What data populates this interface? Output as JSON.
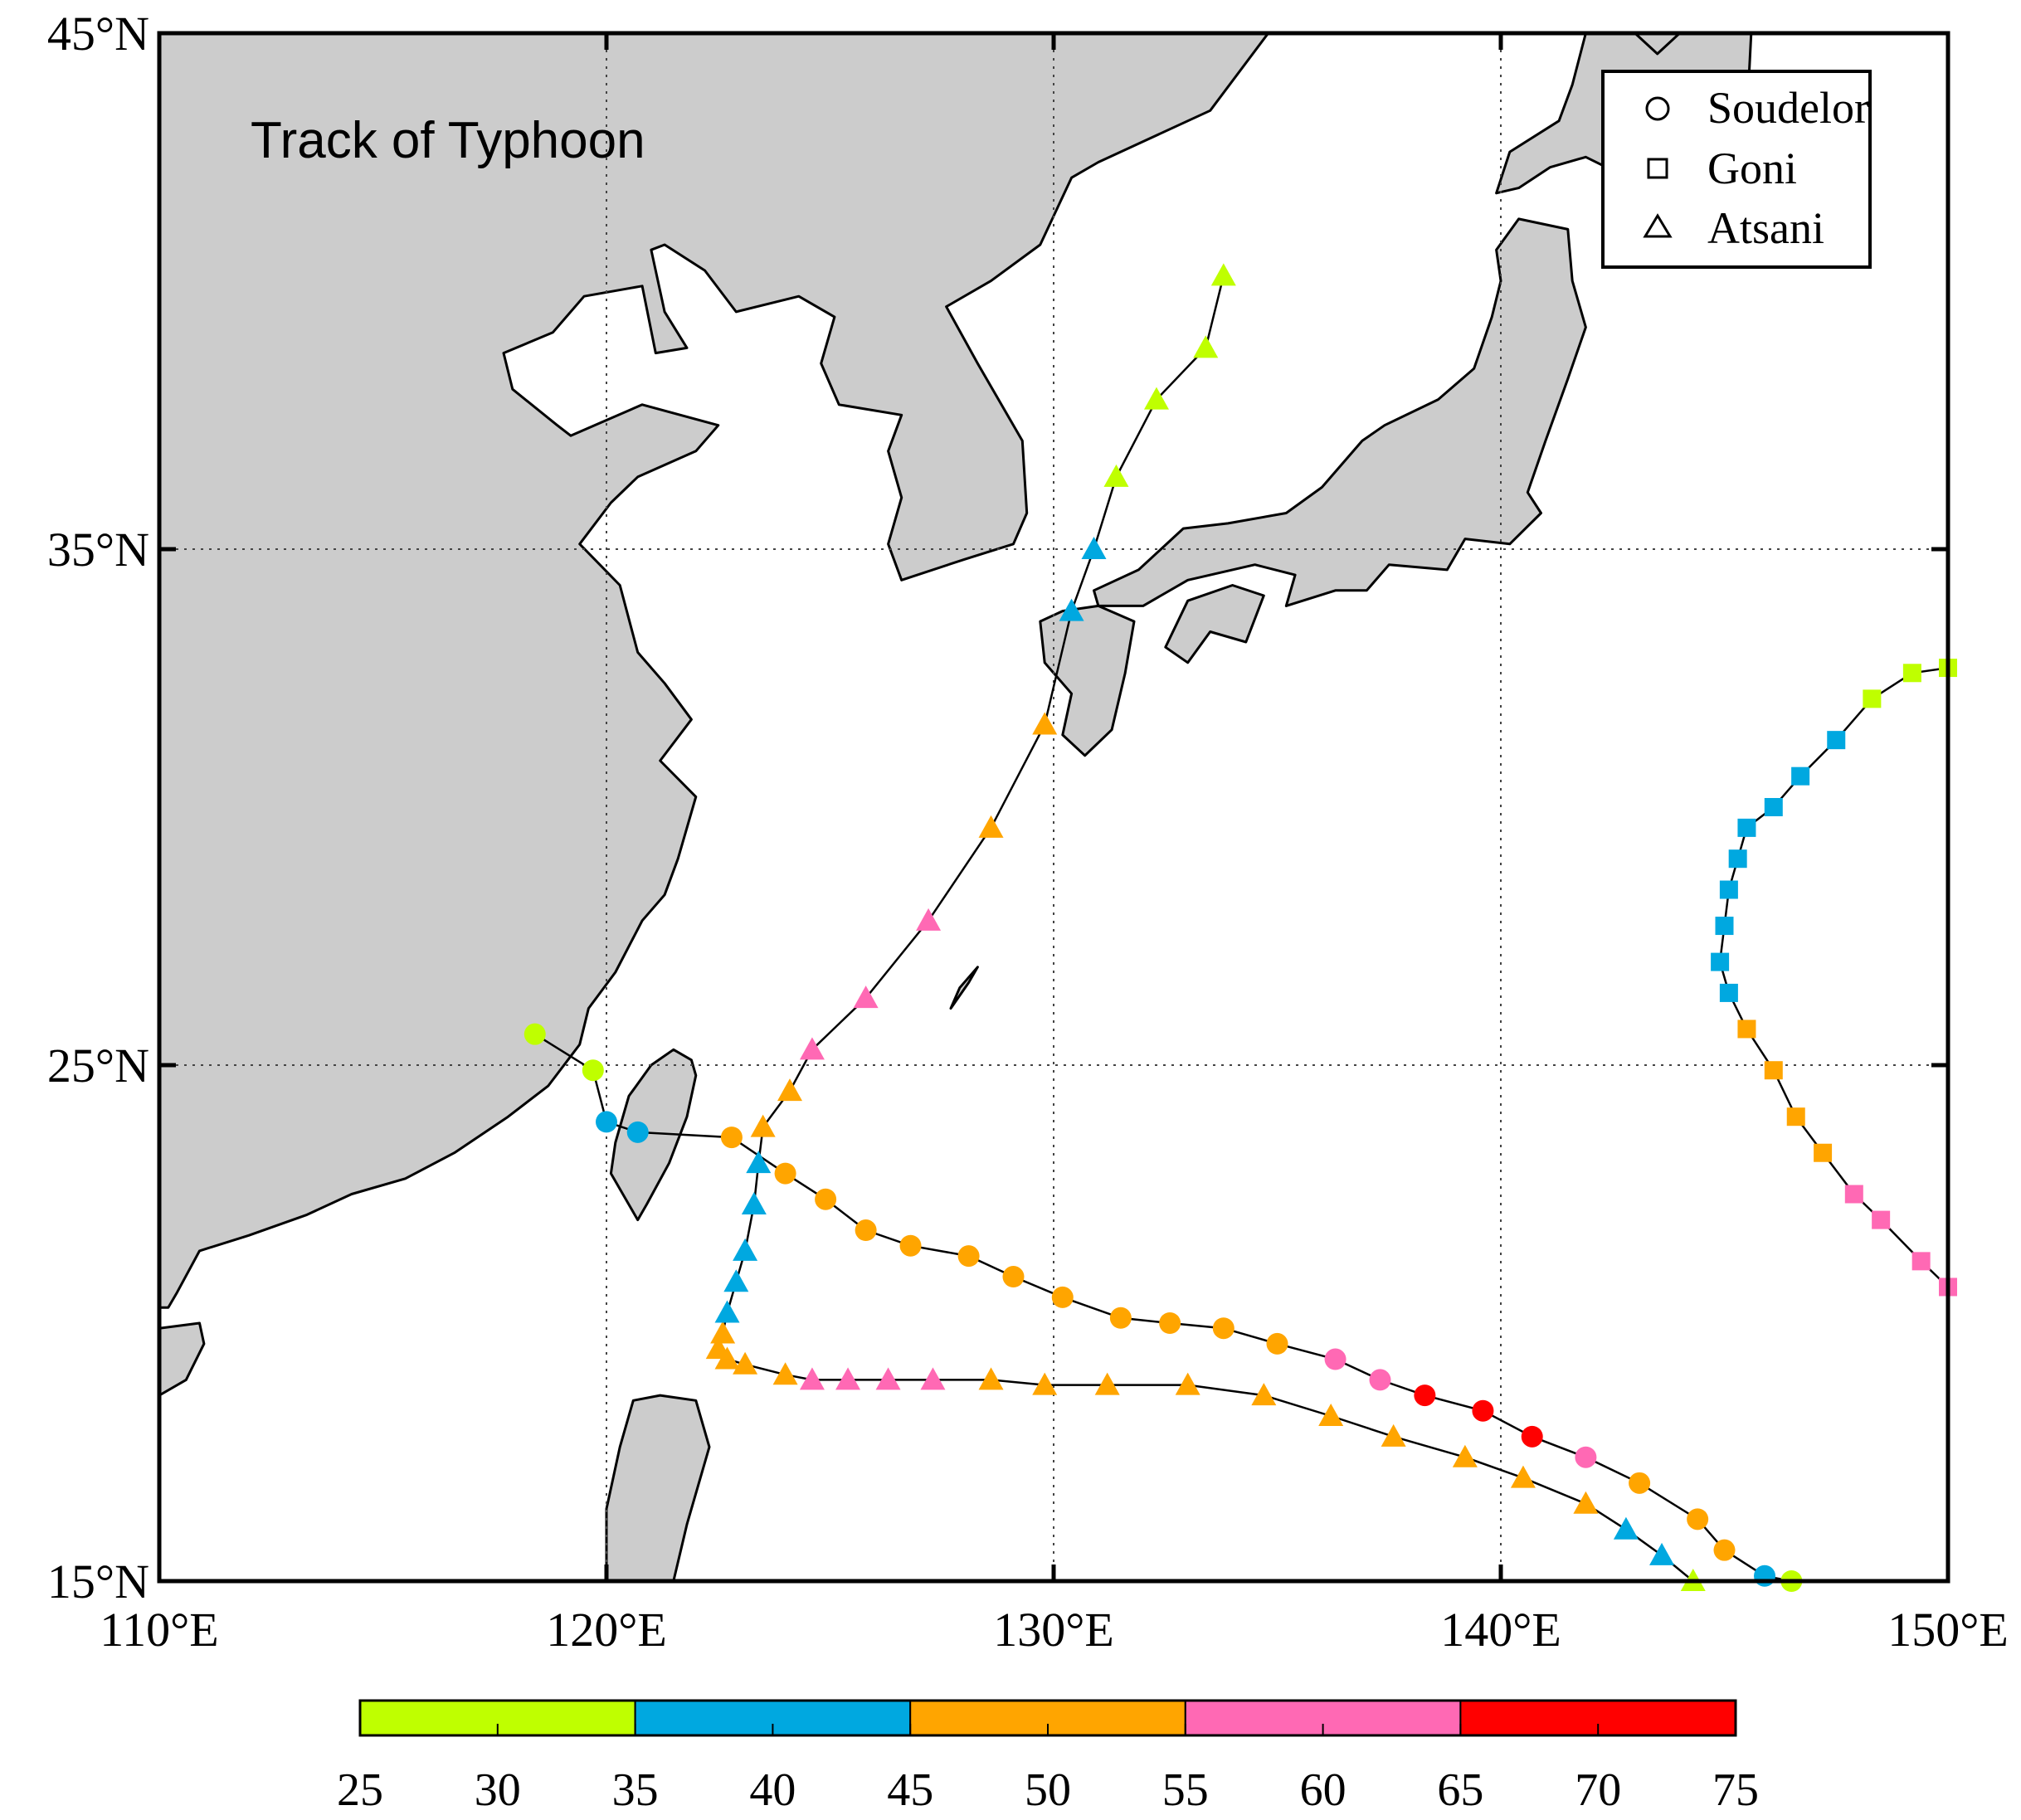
{
  "map": {
    "title": "Track of Typhoon",
    "lon_range": [
      110,
      150
    ],
    "lat_range": [
      15,
      45
    ],
    "lon_ticks": [
      {
        "value": 110,
        "label": "110°E"
      },
      {
        "value": 120,
        "label": "120°E"
      },
      {
        "value": 130,
        "label": "130°E"
      },
      {
        "value": 140,
        "label": "140°E"
      },
      {
        "value": 150,
        "label": "150°E"
      }
    ],
    "lat_ticks": [
      {
        "value": 15,
        "label": "15°N"
      },
      {
        "value": 25,
        "label": "25°N"
      },
      {
        "value": 35,
        "label": "35°N"
      },
      {
        "value": 45,
        "label": "45°N"
      }
    ],
    "grid": "dotted",
    "land_color": "#cccccc",
    "sea_color": "#ffffff"
  },
  "legend": {
    "placement": "top-right",
    "items": [
      {
        "marker": "circle",
        "label": "Soudelor"
      },
      {
        "marker": "square",
        "label": "Goni"
      },
      {
        "marker": "triangle",
        "label": "Atsani"
      }
    ]
  },
  "colorbar": {
    "ticks": [
      "25",
      "30",
      "35",
      "40",
      "45",
      "50",
      "55",
      "60",
      "65",
      "70",
      "75"
    ],
    "bins": [
      {
        "from": 25,
        "to": 35,
        "color": "#bfff00"
      },
      {
        "from": 35,
        "to": 45,
        "color": "#00a8e0"
      },
      {
        "from": 45,
        "to": 55,
        "color": "#ffa500"
      },
      {
        "from": 55,
        "to": 65,
        "color": "#ff69b4"
      },
      {
        "from": 65,
        "to": 75,
        "color": "#ff0000"
      }
    ]
  },
  "chart_data": {
    "type": "scatter",
    "title": "Track of Typhoon",
    "xlim": [
      110,
      150
    ],
    "ylim": [
      15,
      45
    ],
    "series": [
      {
        "name": "Soudelor",
        "marker": "circle",
        "points": [
          [
            146.5,
            15.0,
            30
          ],
          [
            145.9,
            15.1,
            40
          ],
          [
            145.0,
            15.6,
            50
          ],
          [
            144.4,
            16.2,
            50
          ],
          [
            143.1,
            16.9,
            50
          ],
          [
            141.9,
            17.4,
            60
          ],
          [
            140.7,
            17.8,
            70
          ],
          [
            139.6,
            18.3,
            70
          ],
          [
            138.3,
            18.6,
            70
          ],
          [
            137.3,
            18.9,
            60
          ],
          [
            136.3,
            19.3,
            60
          ],
          [
            135.0,
            19.6,
            50
          ],
          [
            133.8,
            19.9,
            50
          ],
          [
            132.6,
            20.0,
            50
          ],
          [
            131.5,
            20.1,
            50
          ],
          [
            130.2,
            20.5,
            50
          ],
          [
            129.1,
            20.9,
            50
          ],
          [
            128.1,
            21.3,
            50
          ],
          [
            126.8,
            21.5,
            50
          ],
          [
            125.8,
            21.8,
            50
          ],
          [
            124.9,
            22.4,
            50
          ],
          [
            124.0,
            22.9,
            50
          ],
          [
            122.8,
            23.6,
            50
          ],
          [
            120.7,
            23.7,
            40
          ],
          [
            120.0,
            23.9,
            40
          ],
          [
            119.7,
            24.9,
            30
          ],
          [
            118.4,
            25.6,
            30
          ]
        ]
      },
      {
        "name": "Goni",
        "marker": "square",
        "points": [
          [
            150.0,
            20.7,
            60
          ],
          [
            149.4,
            21.2,
            60
          ],
          [
            148.5,
            22.0,
            60
          ],
          [
            147.9,
            22.5,
            60
          ],
          [
            147.2,
            23.3,
            50
          ],
          [
            146.6,
            24.0,
            50
          ],
          [
            146.1,
            24.9,
            50
          ],
          [
            145.5,
            25.7,
            50
          ],
          [
            145.1,
            26.4,
            40
          ],
          [
            144.9,
            27.0,
            40
          ],
          [
            145.0,
            27.7,
            40
          ],
          [
            145.1,
            28.4,
            40
          ],
          [
            145.3,
            29.0,
            40
          ],
          [
            145.5,
            29.6,
            40
          ],
          [
            146.1,
            30.0,
            40
          ],
          [
            146.7,
            30.6,
            40
          ],
          [
            147.5,
            31.3,
            40
          ],
          [
            148.3,
            32.1,
            30
          ],
          [
            149.2,
            32.6,
            30
          ],
          [
            150.0,
            32.7,
            30
          ]
        ]
      },
      {
        "name": "Atsani",
        "marker": "triangle",
        "points": [
          [
            144.3,
            15.0,
            30
          ],
          [
            143.6,
            15.5,
            40
          ],
          [
            142.8,
            16.0,
            40
          ],
          [
            141.9,
            16.5,
            50
          ],
          [
            140.5,
            17.0,
            50
          ],
          [
            139.2,
            17.4,
            50
          ],
          [
            137.6,
            17.8,
            50
          ],
          [
            136.2,
            18.2,
            50
          ],
          [
            134.7,
            18.6,
            50
          ],
          [
            133.0,
            18.8,
            50
          ],
          [
            131.2,
            18.8,
            50
          ],
          [
            129.8,
            18.8,
            50
          ],
          [
            128.6,
            18.9,
            50
          ],
          [
            127.3,
            18.9,
            60
          ],
          [
            126.3,
            18.9,
            60
          ],
          [
            125.4,
            18.9,
            60
          ],
          [
            124.6,
            18.9,
            60
          ],
          [
            124.0,
            19.0,
            50
          ],
          [
            123.1,
            19.2,
            50
          ],
          [
            122.7,
            19.3,
            50
          ],
          [
            122.5,
            19.5,
            50
          ],
          [
            122.6,
            19.8,
            50
          ],
          [
            122.7,
            20.2,
            40
          ],
          [
            122.9,
            20.8,
            40
          ],
          [
            123.1,
            21.4,
            40
          ],
          [
            123.3,
            22.3,
            40
          ],
          [
            123.4,
            23.1,
            40
          ],
          [
            123.5,
            23.8,
            50
          ],
          [
            124.1,
            24.5,
            50
          ],
          [
            124.6,
            25.3,
            60
          ],
          [
            125.8,
            26.3,
            60
          ],
          [
            127.2,
            27.8,
            60
          ],
          [
            128.6,
            29.6,
            50
          ],
          [
            129.8,
            31.6,
            50
          ],
          [
            130.4,
            33.8,
            40
          ],
          [
            130.9,
            35.0,
            40
          ],
          [
            131.4,
            36.4,
            30
          ],
          [
            132.3,
            37.9,
            30
          ],
          [
            133.4,
            38.9,
            30
          ],
          [
            133.8,
            40.3,
            30
          ]
        ]
      }
    ]
  }
}
